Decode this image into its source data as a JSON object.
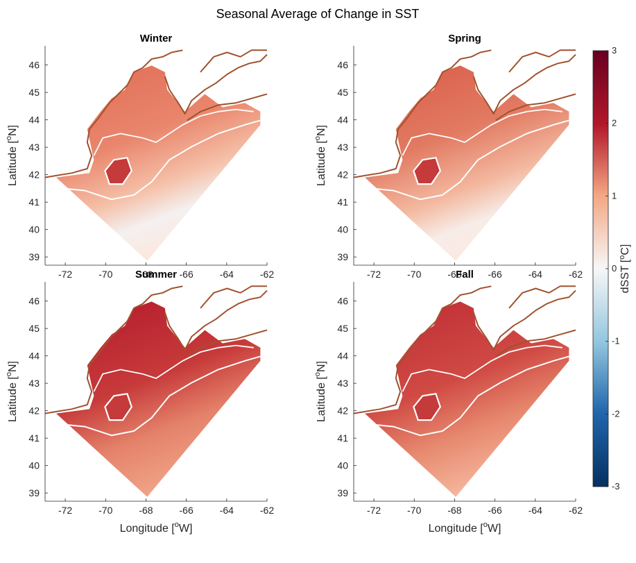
{
  "title": "Seasonal Average of Change in SST",
  "xlabel_base": "Longitude [",
  "xlabel_sup": "o",
  "xlabel_end": "W]",
  "ylabel_base": "Latitude [",
  "ylabel_sup": "o",
  "ylabel_end": "N]",
  "colorbar": {
    "label_base": "dSST [",
    "label_sup": "o",
    "label_end": "C]",
    "range": [
      -3,
      3
    ],
    "ticks": [
      "3",
      "2",
      "1",
      "0",
      "-1",
      "-2",
      "-3"
    ],
    "colormap": "diverging red-blue"
  },
  "x_ticks": [
    "-72",
    "-70",
    "-68",
    "-66",
    "-64",
    "-62"
  ],
  "y_ticks": [
    "46",
    "45",
    "44",
    "43",
    "42",
    "41",
    "40",
    "39"
  ],
  "panels": [
    {
      "title": "Winter"
    },
    {
      "title": "Spring"
    },
    {
      "title": "Summer"
    },
    {
      "title": "Fall"
    }
  ],
  "colors": {
    "coastline": "#a0522d",
    "deep_red": "#b2182b",
    "light_red": "#f4a582",
    "neutral": "#f7f7f7",
    "deep_blue": "#2166ac"
  }
}
